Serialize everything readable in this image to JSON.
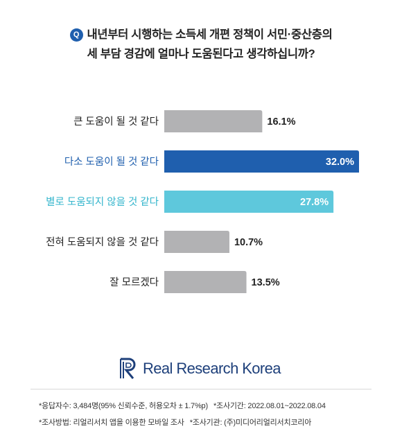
{
  "question": {
    "badge": "Q",
    "line1": "내년부터 시행하는 소득세 개편 정책이 서민·중산층의",
    "line2": "세 부담 경감에 얼마나 도움된다고 생각하십니까?"
  },
  "chart_data": {
    "type": "bar",
    "orientation": "horizontal",
    "categories": [
      "큰 도움이 될 것 같다",
      "다소 도움이 될 것 같다",
      "별로 도움되지 않을 것 같다",
      "전혀 도움되지 않을 것 같다",
      "잘 모르겠다"
    ],
    "values": [
      16.1,
      32.0,
      27.8,
      10.7,
      13.5
    ],
    "value_labels": [
      "16.1%",
      "32.0%",
      "27.8%",
      "10.7%",
      "13.5%"
    ],
    "bar_colors": [
      "#b2b2b4",
      "#1f5fae",
      "#5ec8dc",
      "#b2b2b4",
      "#b2b2b4"
    ],
    "category_colors": [
      "#222222",
      "#1f5fae",
      "#33b5cc",
      "#222222",
      "#222222"
    ],
    "value_label_position": [
      "outside",
      "inside",
      "inside",
      "outside",
      "outside"
    ],
    "xlim": [
      0,
      32.0
    ]
  },
  "logo": {
    "text": "Real Research Korea",
    "color": "#1d3f7a"
  },
  "footnotes": {
    "line1a": "*응답자수: 3,484명(95% 신뢰수준, 허용오차 ± 1.7%p)",
    "line1b": "*조사기간: 2022.08.01~2022.08.04",
    "line2a": "*조사방법: 리얼리서치 앱을 이용한 모바일 조사",
    "line2b": "*조사기관: (주)미디어리얼리서치코리아"
  }
}
